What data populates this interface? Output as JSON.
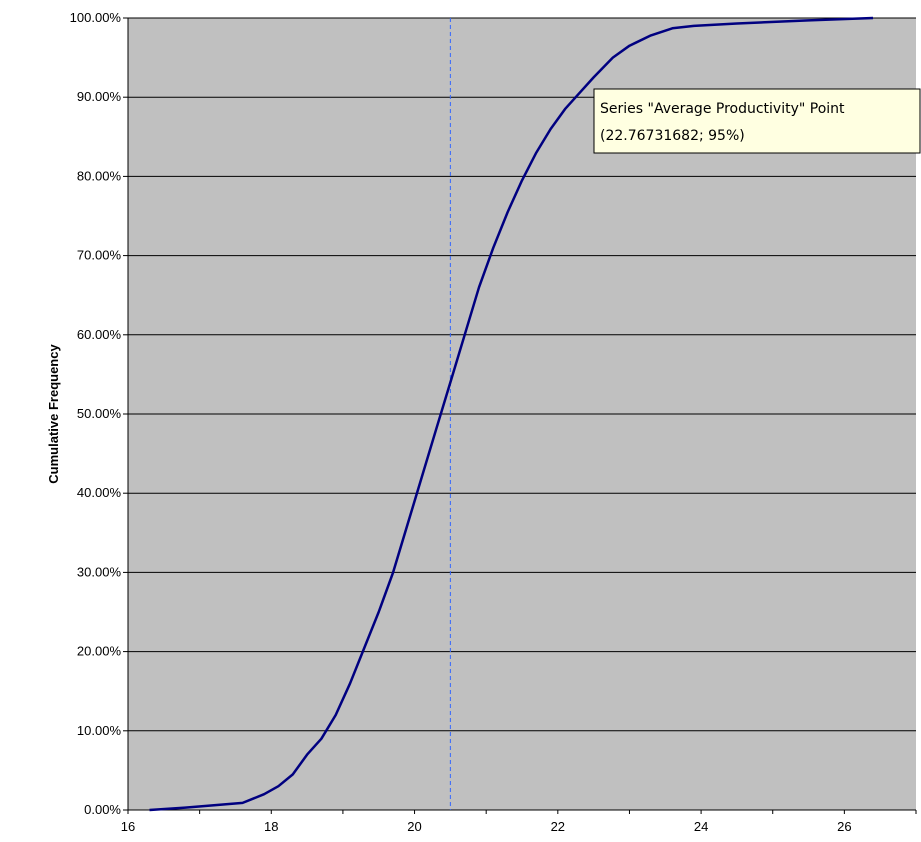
{
  "chart_data": {
    "type": "line",
    "title": "",
    "xlabel": "",
    "ylabel": "Cumulative Frequency",
    "xlim": [
      16,
      27
    ],
    "ylim": [
      0,
      1
    ],
    "x_ticks": [
      16,
      18,
      20,
      22,
      24,
      26
    ],
    "x_tick_labels": [
      "16",
      "18",
      "20",
      "22",
      "24",
      "26"
    ],
    "y_ticks": [
      0,
      0.1,
      0.2,
      0.3,
      0.4,
      0.5,
      0.6,
      0.7,
      0.8,
      0.9,
      1.0
    ],
    "y_tick_labels": [
      "0.00%",
      "10.00%",
      "20.00%",
      "30.00%",
      "40.00%",
      "50.00%",
      "60.00%",
      "70.00%",
      "80.00%",
      "90.00%",
      "100.00%"
    ],
    "grid": "horizontal",
    "legend": "none",
    "series": [
      {
        "name": "Average Productivity",
        "x": [
          16.3,
          16.8,
          17.2,
          17.6,
          17.9,
          18.1,
          18.3,
          18.5,
          18.7,
          18.9,
          19.1,
          19.3,
          19.5,
          19.7,
          19.9,
          20.1,
          20.3,
          20.5,
          20.7,
          20.9,
          21.1,
          21.3,
          21.5,
          21.7,
          21.9,
          22.1,
          22.3,
          22.5,
          22.76731682,
          23.0,
          23.3,
          23.6,
          23.9,
          24.5,
          25.5,
          26.4
        ],
        "y": [
          0.0,
          0.003,
          0.006,
          0.009,
          0.02,
          0.03,
          0.045,
          0.07,
          0.09,
          0.12,
          0.16,
          0.205,
          0.25,
          0.3,
          0.36,
          0.42,
          0.48,
          0.54,
          0.6,
          0.66,
          0.71,
          0.755,
          0.795,
          0.83,
          0.86,
          0.885,
          0.905,
          0.925,
          0.95,
          0.965,
          0.978,
          0.987,
          0.99,
          0.993,
          0.997,
          1.0
        ]
      }
    ],
    "reference_line": {
      "x": 20.5,
      "style": "dashed"
    },
    "annotation": {
      "line1": "Series \"Average Productivity\" Point",
      "line2": "(22.76731682; 95%)"
    },
    "colors": {
      "plot_background": "#c0c0c0",
      "series_line": "#000080",
      "grid": "#000000",
      "reference_line": "#3366ff",
      "tooltip_background": "#ffffe1"
    }
  }
}
